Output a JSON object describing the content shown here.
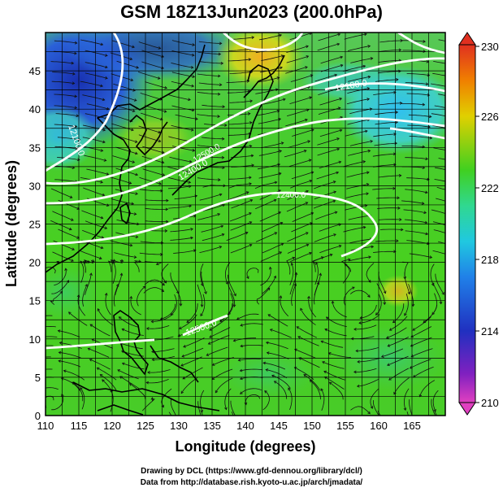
{
  "title": "GSM 18Z13Jun2023 (200.0hPa)",
  "x_axis": {
    "label": "Longitude (degrees)",
    "ticks": [
      "110",
      "115",
      "120",
      "125",
      "130",
      "135",
      "140",
      "145",
      "150",
      "155",
      "160",
      "165"
    ]
  },
  "y_axis": {
    "label": "Latitude  (degrees)",
    "ticks": [
      "0",
      "5",
      "10",
      "15",
      "20",
      "25",
      "30",
      "35",
      "40",
      "45"
    ]
  },
  "colorbar": {
    "labels": [
      "210",
      "214",
      "218",
      "222",
      "226",
      "230"
    ],
    "colors": [
      "#e040c0",
      "#2030c0",
      "#20b8e8",
      "#40d020",
      "#f0c000",
      "#e03020"
    ]
  },
  "contour_labels": [
    "12100.0",
    "12100.0",
    "12400.0",
    "12400.0",
    "12500.0",
    "12500.0"
  ],
  "footer": {
    "line1": "Drawing by DCL (https://www.gfd-dennou.org/library/dcl/)",
    "line2": "Data from http://database.rish.kyoto-u.ac.jp/arch/jmadata/"
  }
}
